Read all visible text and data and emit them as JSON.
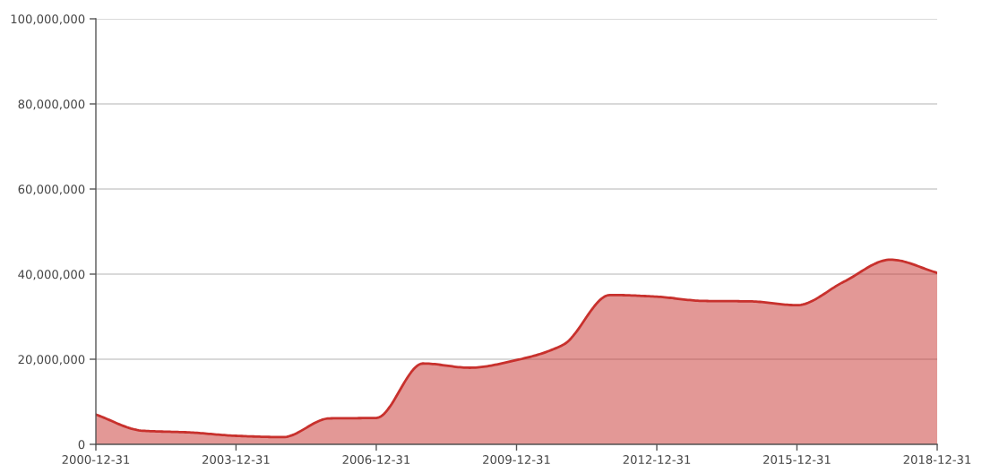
{
  "chart_data": {
    "type": "area",
    "x": [
      "2000-12-31",
      "2001-12-31",
      "2002-12-31",
      "2003-12-31",
      "2004-12-31",
      "2005-12-31",
      "2006-12-31",
      "2007-12-31",
      "2008-12-31",
      "2009-12-31",
      "2010-12-31",
      "2011-12-31",
      "2012-12-31",
      "2013-12-31",
      "2014-12-31",
      "2015-12-31",
      "2016-12-31",
      "2017-12-31",
      "2018-12-31"
    ],
    "series": [
      {
        "color": "#c8312d",
        "values": [
          7000000,
          3200000,
          2800000,
          2000000,
          1700000,
          6100000,
          6200000,
          19000000,
          18000000,
          19800000,
          23400000,
          35100000,
          34700000,
          33700000,
          33600000,
          32700000,
          38200000,
          43400000,
          40300000
        ]
      }
    ],
    "xlim": [
      "2000-12-31",
      "2018-12-31"
    ],
    "xticks": [
      "2000-12-31",
      "2003-12-31",
      "2006-12-31",
      "2009-12-31",
      "2012-12-31",
      "2015-12-31",
      "2018-12-31"
    ],
    "ylim": [
      0,
      100000000
    ],
    "yticks": [
      0,
      {
        "value": 20000000,
        "label": "20,000,000"
      },
      {
        "value": 40000000,
        "label": "40,000,000"
      },
      {
        "value": 60000000,
        "label": "60,000,000"
      },
      {
        "value": 80000000,
        "label": "80,000,000"
      },
      {
        "value": 100000000,
        "label": "100,000,000"
      }
    ],
    "grid": "y",
    "line_style": "solid"
  }
}
